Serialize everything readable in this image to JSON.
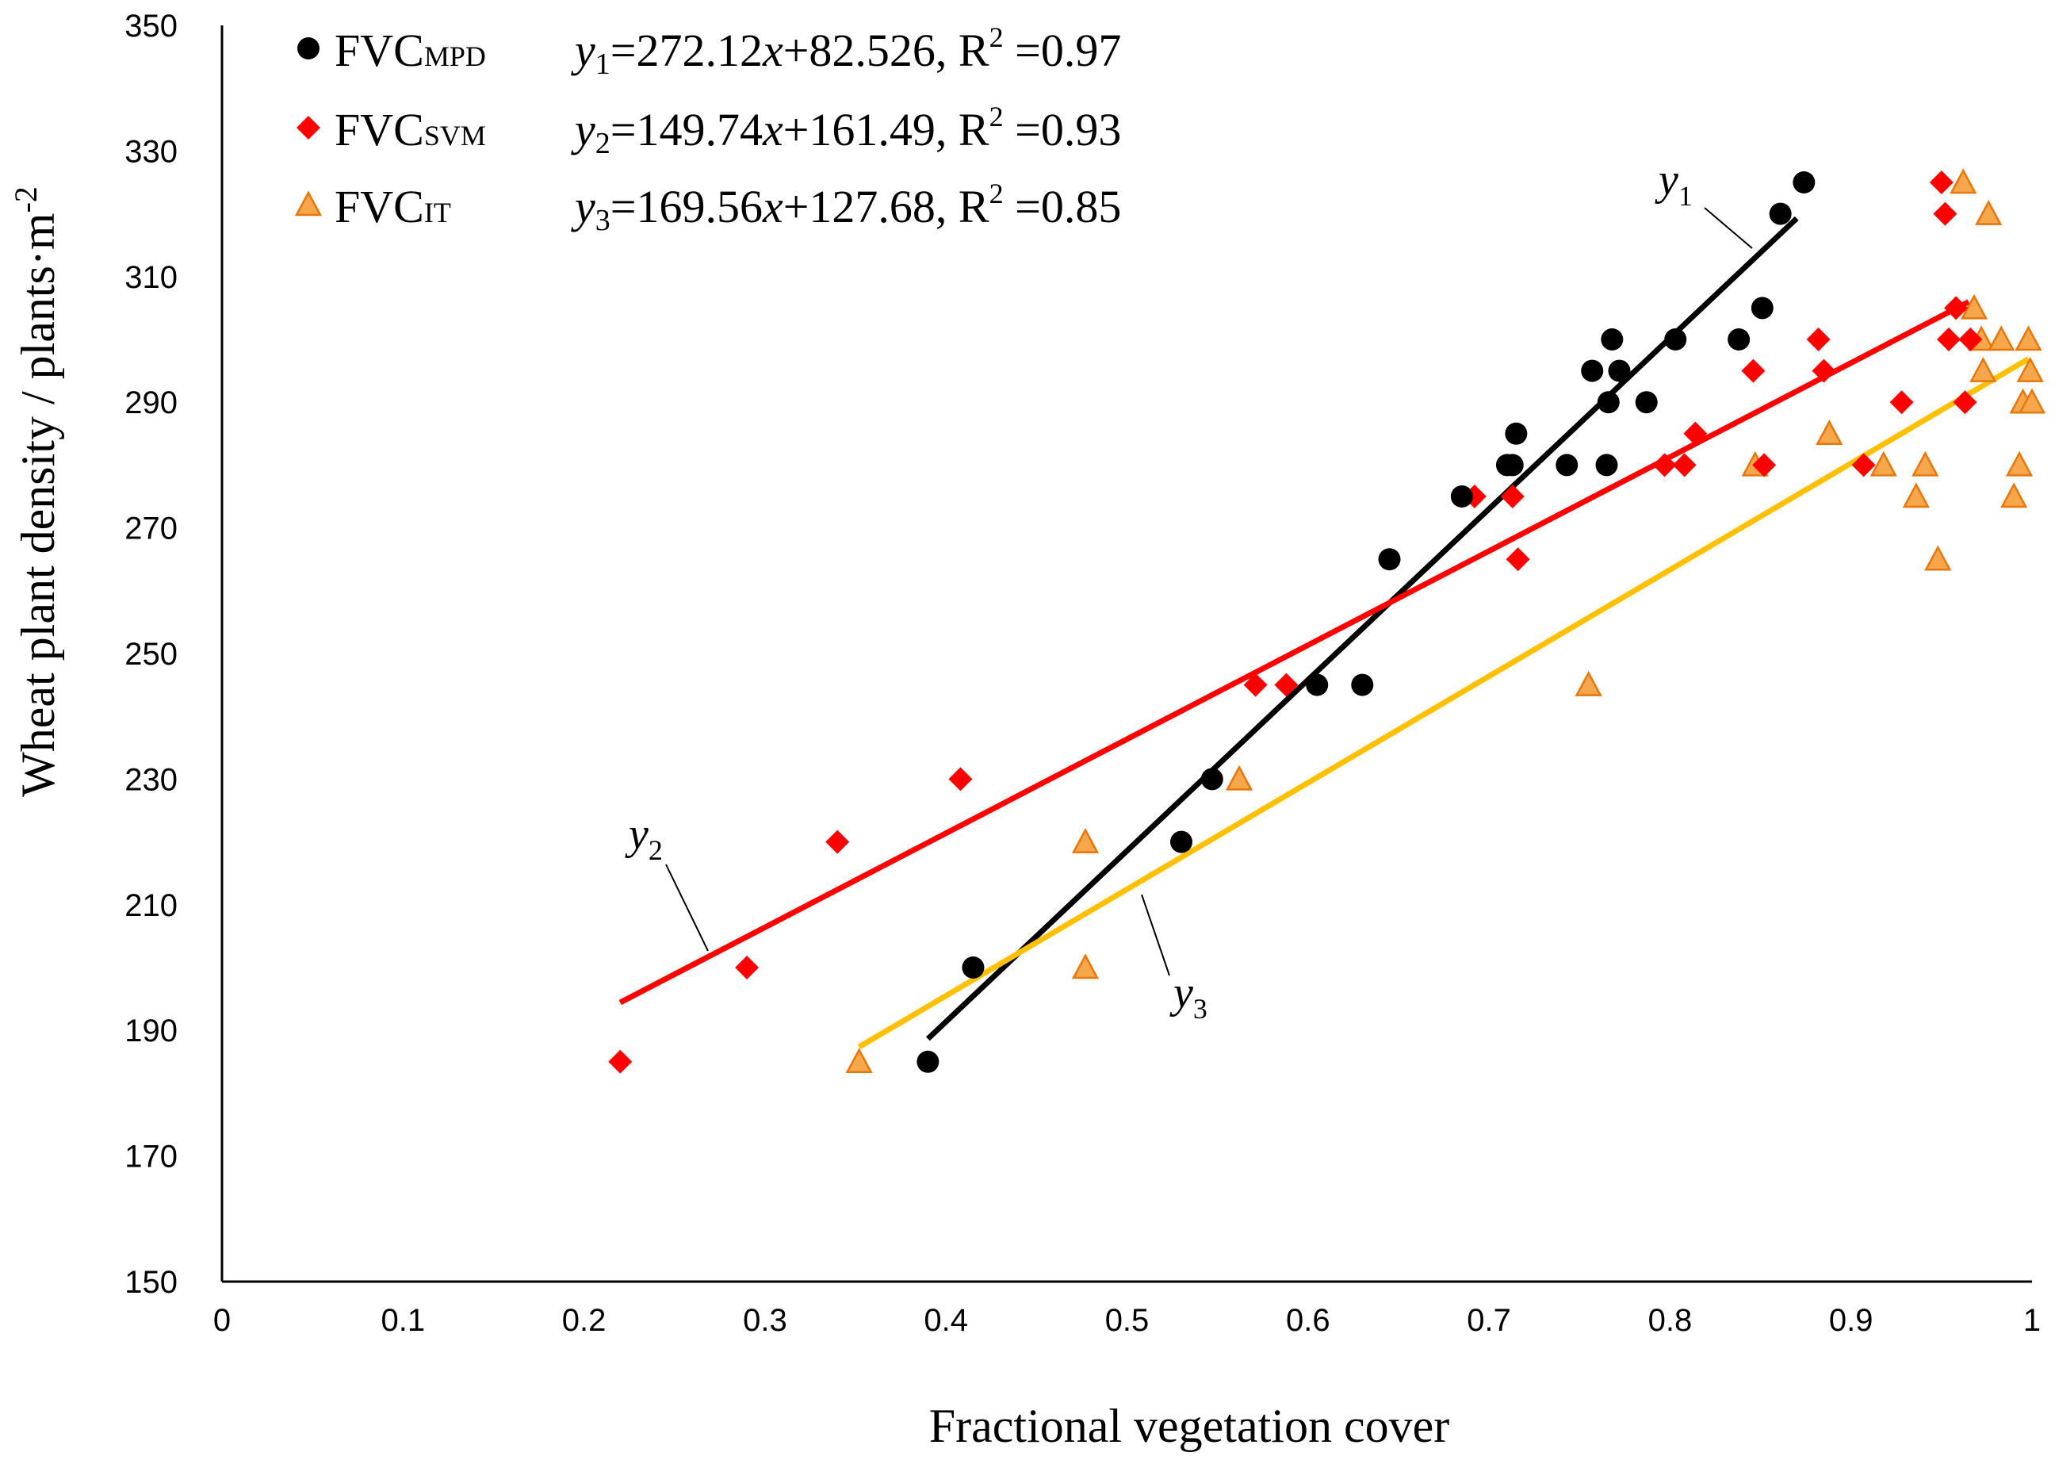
{
  "chart_data": {
    "type": "scatter",
    "xlabel": "Fractional vegetation cover",
    "ylabel": "Wheat plant density / plants·m",
    "ylabel_sup": "-2",
    "xlim": [
      0,
      1
    ],
    "ylim": [
      150,
      350
    ],
    "xticks": [
      "0",
      "0.1",
      "0.2",
      "0.3",
      "0.4",
      "0.5",
      "0.6",
      "0.7",
      "0.8",
      "0.9",
      "1"
    ],
    "yticks": [
      "150",
      "170",
      "190",
      "210",
      "230",
      "250",
      "270",
      "290",
      "310",
      "330",
      "350"
    ],
    "legend_position": "top-left",
    "series": [
      {
        "name": "FVC",
        "subscript": "MPD",
        "marker": "circle",
        "color": "#000000",
        "equation": {
          "y": "y",
          "sub": "1",
          "body": "=272.12",
          "x": "x",
          "rest": "+82.526, R",
          "sup": "2",
          "tail": " =0.97"
        },
        "line_label": {
          "main": "y",
          "sub": "1"
        },
        "fit": {
          "slope": 272.12,
          "intercept": 82.526,
          "x_range": [
            0.39,
            0.87
          ]
        },
        "points": [
          [
            0.39,
            185
          ],
          [
            0.415,
            200
          ],
          [
            0.53,
            220
          ],
          [
            0.547,
            230
          ],
          [
            0.605,
            245
          ],
          [
            0.63,
            245
          ],
          [
            0.645,
            265
          ],
          [
            0.685,
            275
          ],
          [
            0.71,
            280
          ],
          [
            0.713,
            280
          ],
          [
            0.715,
            285
          ],
          [
            0.743,
            280
          ],
          [
            0.757,
            295
          ],
          [
            0.765,
            280
          ],
          [
            0.766,
            290
          ],
          [
            0.768,
            300
          ],
          [
            0.772,
            295
          ],
          [
            0.787,
            290
          ],
          [
            0.803,
            300
          ],
          [
            0.838,
            300
          ],
          [
            0.851,
            305
          ],
          [
            0.861,
            320
          ],
          [
            0.874,
            325
          ]
        ]
      },
      {
        "name": "FVC",
        "subscript": "SVM",
        "marker": "diamond",
        "color": "#ff0000",
        "equation": {
          "y": "y",
          "sub": "2",
          "body": "=149.74",
          "x": "x",
          "rest": "+161.49, R",
          "sup": "2",
          "tail": " =0.93"
        },
        "line_label": {
          "main": "y",
          "sub": "2"
        },
        "fit": {
          "slope": 149.74,
          "intercept": 161.49,
          "x_range": [
            0.22,
            0.965
          ]
        },
        "points": [
          [
            0.22,
            185
          ],
          [
            0.29,
            200
          ],
          [
            0.34,
            220
          ],
          [
            0.408,
            230
          ],
          [
            0.571,
            245
          ],
          [
            0.588,
            245
          ],
          [
            0.692,
            275
          ],
          [
            0.713,
            275
          ],
          [
            0.716,
            265
          ],
          [
            0.797,
            280
          ],
          [
            0.808,
            280
          ],
          [
            0.814,
            285
          ],
          [
            0.846,
            295
          ],
          [
            0.852,
            280
          ],
          [
            0.882,
            300
          ],
          [
            0.885,
            295
          ],
          [
            0.907,
            280
          ],
          [
            0.928,
            290
          ],
          [
            0.95,
            325
          ],
          [
            0.952,
            320
          ],
          [
            0.954,
            300
          ],
          [
            0.958,
            305
          ],
          [
            0.963,
            290
          ],
          [
            0.966,
            300
          ]
        ]
      },
      {
        "name": "FVC",
        "subscript": "IT",
        "marker": "triangle",
        "color": "#f6a64b",
        "stroke": "#e8760a",
        "line_color": "#ffc000",
        "equation": {
          "y": "y",
          "sub": "3",
          "body": "=169.56",
          "x": "x",
          "rest": "+127.68, R",
          "sup": "2",
          "tail": " =0.85"
        },
        "line_label": {
          "main": "y",
          "sub": "3"
        },
        "fit": {
          "slope": 169.56,
          "intercept": 127.68,
          "x_range": [
            0.352,
            0.998
          ]
        },
        "points": [
          [
            0.352,
            185
          ],
          [
            0.477,
            220
          ],
          [
            0.477,
            200
          ],
          [
            0.562,
            230
          ],
          [
            0.755,
            245
          ],
          [
            0.847,
            280
          ],
          [
            0.888,
            285
          ],
          [
            0.918,
            280
          ],
          [
            0.936,
            275
          ],
          [
            0.941,
            280
          ],
          [
            0.948,
            265
          ],
          [
            0.962,
            325
          ],
          [
            0.968,
            305
          ],
          [
            0.972,
            300
          ],
          [
            0.973,
            295
          ],
          [
            0.976,
            320
          ],
          [
            0.983,
            300
          ],
          [
            0.99,
            275
          ],
          [
            0.993,
            280
          ],
          [
            0.995,
            290
          ],
          [
            0.998,
            300
          ],
          [
            0.999,
            295
          ],
          [
            1.0,
            290
          ]
        ]
      }
    ]
  }
}
